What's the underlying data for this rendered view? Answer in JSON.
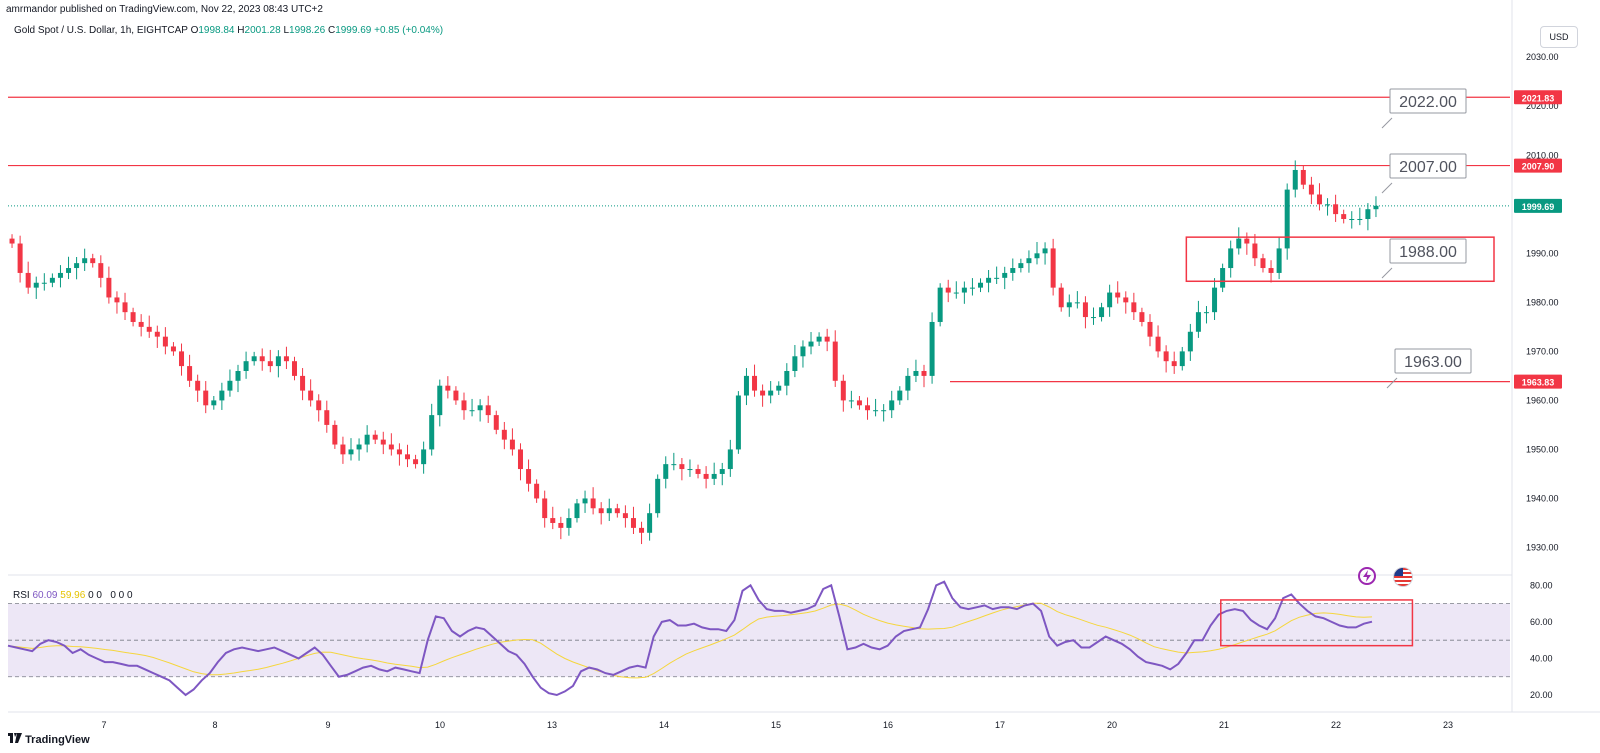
{
  "header": {
    "published": "amrmandor published on TradingView.com, Nov 22, 2023 08:43 UTC+2"
  },
  "legend": {
    "symbol": "Gold Spot / U.S. Dollar, 1h, EIGHTCAP",
    "o_label": "O",
    "o": "1998.84",
    "h_label": "H",
    "h": "2001.28",
    "l_label": "L",
    "l": "1998.26",
    "c_label": "C",
    "c": "1999.69",
    "change": "+0.85 (+0.04%)"
  },
  "currency": "USD",
  "rsi_legend": {
    "name": "RSI",
    "v1": "60.09",
    "v2": "59.96",
    "z": "0 0",
    "z2": "0 0 0"
  },
  "footer": {
    "brand": "TradingView"
  },
  "colors": {
    "up": "#089981",
    "down": "#f23645",
    "line": "#f23645",
    "rsi": "#7e57c2",
    "rsi_ma": "#f5d63d",
    "band": "#ede7f6"
  },
  "chart_data": {
    "type": "candlestick",
    "price_axis": {
      "ticks": [
        "2030.00",
        "2020.00",
        "2010.00",
        "1990.00",
        "1980.00",
        "1970.00",
        "1960.00",
        "1950.00",
        "1940.00",
        "1930.00"
      ],
      "ylim": [
        1925,
        2038
      ]
    },
    "x_labels": [
      "7",
      "8",
      "9",
      "10",
      "13",
      "14",
      "15",
      "16",
      "17",
      "20",
      "21",
      "22",
      "23"
    ],
    "horizontal_lines": [
      {
        "price": 2021.83,
        "label": "2021.83"
      },
      {
        "price": 2007.9,
        "label": "2007.90"
      },
      {
        "price": 1963.83,
        "label": "1963.83"
      }
    ],
    "current_price": {
      "price": 1999.69,
      "label": "1999.69"
    },
    "callouts": [
      "2022.00",
      "2007.00",
      "1988.00",
      "1963.00"
    ],
    "zone": {
      "top": 1993.3,
      "bottom": 1984.3
    },
    "closes": [
      1992,
      1986,
      1983,
      1984,
      1984,
      1985,
      1986,
      1987,
      1988,
      1989,
      1988,
      1985,
      1981,
      1980,
      1978,
      1976,
      1975,
      1974,
      1973,
      1971,
      1970,
      1967,
      1964,
      1962,
      1959,
      1960,
      1962,
      1964,
      1966,
      1968,
      1969,
      1968,
      1967,
      1969,
      1968,
      1965,
      1962,
      1960,
      1958,
      1955,
      1951,
      1949,
      1950,
      1951,
      1953,
      1952,
      1951,
      1950,
      1949,
      1948,
      1947,
      1950,
      1957,
      1963,
      1962,
      1960,
      1958,
      1958,
      1959,
      1957,
      1954,
      1952,
      1950,
      1946,
      1943,
      1940,
      1936,
      1935,
      1934,
      1936,
      1939,
      1940,
      1938,
      1937,
      1938,
      1937,
      1936,
      1934,
      1933,
      1937,
      1944,
      1947,
      1947,
      1946,
      1946,
      1945,
      1944,
      1945,
      1946,
      1950,
      1961,
      1965,
      1962,
      1961,
      1962,
      1963,
      1966,
      1969,
      1971,
      1972,
      1973,
      1972,
      1964,
      1960,
      1960,
      1959,
      1958,
      1958,
      1958,
      1960,
      1962,
      1965,
      1966,
      1965,
      1976,
      1983,
      1982,
      1982,
      1983,
      1983,
      1984,
      1985,
      1985,
      1986,
      1987,
      1988,
      1989,
      1990,
      1991,
      1983,
      1979,
      1980,
      1980,
      1977,
      1977,
      1979,
      1982,
      1981,
      1980,
      1978,
      1976,
      1973,
      1970,
      1968,
      1967,
      1970,
      1974,
      1978,
      1978,
      1983,
      1987,
      1991,
      1993,
      1992,
      1989,
      1987,
      1986,
      1991,
      2003,
      2007,
      2004,
      2002,
      2000,
      2000,
      1998,
      1997,
      1997,
      1997,
      1999,
      1999.69
    ],
    "rsi": [
      47,
      46,
      45,
      44,
      48,
      50,
      49,
      47,
      43,
      45,
      42,
      40,
      38,
      38,
      37,
      36,
      36,
      34,
      32,
      30,
      28,
      24,
      20,
      23,
      28,
      32,
      38,
      43,
      45,
      46,
      45,
      44,
      45,
      46,
      44,
      42,
      40,
      43,
      46,
      42,
      36,
      30,
      31,
      33,
      35,
      36,
      34,
      33,
      35,
      34,
      33,
      32,
      50,
      63,
      62,
      55,
      52,
      55,
      57,
      56,
      52,
      48,
      44,
      42,
      37,
      30,
      24,
      21,
      20,
      22,
      25,
      33,
      35,
      34,
      32,
      31,
      33,
      35,
      36,
      35,
      52,
      60,
      61,
      58,
      58,
      59,
      57,
      56,
      56,
      55,
      61,
      77,
      80,
      72,
      67,
      66,
      66,
      65,
      66,
      67,
      69,
      78,
      80,
      63,
      45,
      46,
      48,
      46,
      45,
      47,
      52,
      55,
      56,
      57,
      67,
      80,
      82,
      73,
      68,
      67,
      68,
      69,
      67,
      68,
      68,
      67,
      69,
      70,
      66,
      52,
      47,
      49,
      50,
      46,
      46,
      49,
      52,
      50,
      48,
      45,
      41,
      38,
      37,
      36,
      34,
      37,
      43,
      50,
      50,
      58,
      64,
      66,
      67,
      66,
      61,
      58,
      56,
      62,
      73,
      75,
      70,
      66,
      63,
      62,
      60,
      58,
      57,
      57,
      59,
      60.09
    ]
  }
}
